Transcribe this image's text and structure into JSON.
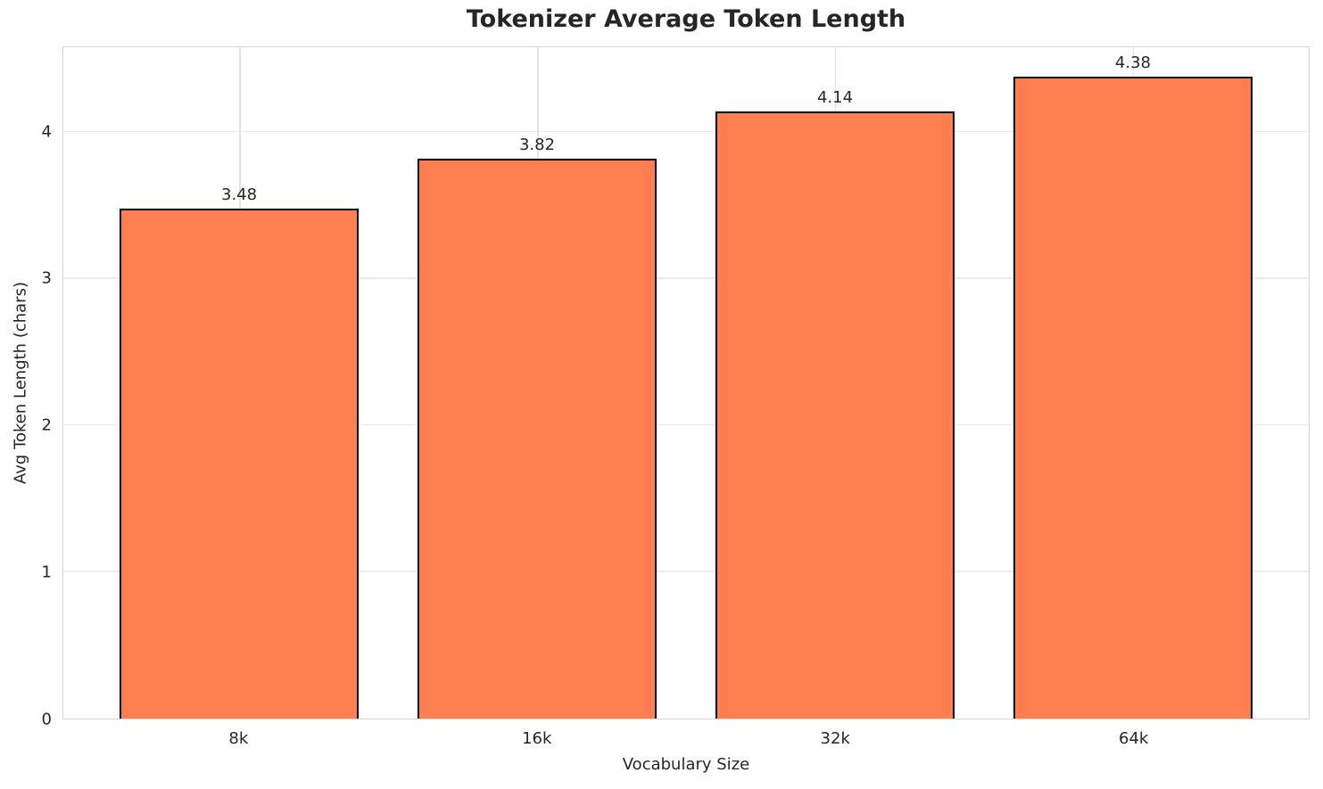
{
  "chart_data": {
    "type": "bar",
    "title": "Tokenizer Average Token Length",
    "categories": [
      "8k",
      "16k",
      "32k",
      "64k"
    ],
    "values": [
      3.48,
      3.82,
      4.14,
      4.38
    ],
    "value_labels": [
      "3.48",
      "3.82",
      "4.14",
      "4.38"
    ],
    "xlabel": "Vocabulary Size",
    "ylabel": "Avg Token Length (chars)",
    "yticks": [
      "0",
      "1",
      "2",
      "3",
      "4"
    ],
    "ytick_values": [
      0,
      1,
      2,
      3,
      4
    ],
    "ylim": [
      0,
      4.58
    ],
    "grid": true,
    "legend": "none",
    "colors": {
      "bar_fill": "#FF7F50",
      "bar_edge": "#000000",
      "text": "#262626",
      "grid_h": "#ececec",
      "grid_v": "#e3e3e3",
      "spine": "#d5d5d5",
      "background": "#ffffff"
    }
  }
}
